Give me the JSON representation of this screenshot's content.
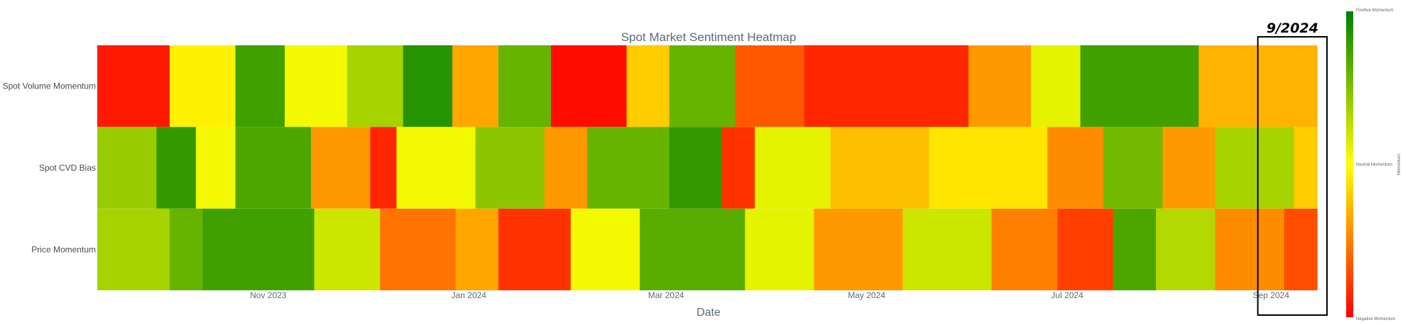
{
  "chart_data": {
    "type": "heatmap",
    "title": "Spot Market Sentiment Heatmap",
    "xlabel": "Date",
    "ylabel": "",
    "x_range": [
      "2023-09-10",
      "2024-09-15"
    ],
    "x_ticks": [
      {
        "date": "2023-11-01",
        "label": "Nov 2023"
      },
      {
        "date": "2024-01-01",
        "label": "Jan 2024"
      },
      {
        "date": "2024-03-01",
        "label": "Mar 2024"
      },
      {
        "date": "2024-05-01",
        "label": "May 2024"
      },
      {
        "date": "2024-07-01",
        "label": "Jul 2024"
      },
      {
        "date": "2024-09-01",
        "label": "Sep 2024"
      }
    ],
    "rows": [
      "Spot Volume Momentum",
      "Spot CVD Bias",
      "Price Momentum"
    ],
    "value_range": [
      -1,
      1
    ],
    "colorscale": [
      [
        0,
        "#ff0000"
      ],
      [
        0.5,
        "#ffff00"
      ],
      [
        1,
        "#008000"
      ]
    ],
    "colorbar": {
      "title": "Momentum",
      "top_label": "Positive Momentum",
      "mid_label": "Neutral Momentum",
      "bottom_label": "Negative Momentum"
    },
    "series_segments": [
      {
        "name": "Spot Volume Momentum",
        "segments": [
          {
            "start": "2023-09-10",
            "end": "2023-10-02",
            "value": -0.9
          },
          {
            "start": "2023-10-02",
            "end": "2023-10-22",
            "value": -0.05
          },
          {
            "start": "2023-10-22",
            "end": "2023-11-06",
            "value": 0.75
          },
          {
            "start": "2023-11-06",
            "end": "2023-11-25",
            "value": 0.05
          },
          {
            "start": "2023-11-25",
            "end": "2023-12-12",
            "value": 0.35
          },
          {
            "start": "2023-12-12",
            "end": "2023-12-27",
            "value": 0.85
          },
          {
            "start": "2023-12-27",
            "end": "2024-01-10",
            "value": -0.35
          },
          {
            "start": "2024-01-10",
            "end": "2024-01-26",
            "value": 0.6
          },
          {
            "start": "2024-01-26",
            "end": "2024-02-18",
            "value": -0.95
          },
          {
            "start": "2024-02-18",
            "end": "2024-03-02",
            "value": -0.2
          },
          {
            "start": "2024-03-02",
            "end": "2024-03-22",
            "value": 0.6
          },
          {
            "start": "2024-03-22",
            "end": "2024-04-12",
            "value": -0.65
          },
          {
            "start": "2024-04-12",
            "end": "2024-06-01",
            "value": -0.85
          },
          {
            "start": "2024-06-01",
            "end": "2024-06-20",
            "value": -0.4
          },
          {
            "start": "2024-06-20",
            "end": "2024-07-05",
            "value": 0.1
          },
          {
            "start": "2024-07-05",
            "end": "2024-08-10",
            "value": 0.75
          },
          {
            "start": "2024-08-10",
            "end": "2024-09-15",
            "value": -0.3
          }
        ]
      },
      {
        "name": "Spot CVD Bias",
        "segments": [
          {
            "start": "2023-09-10",
            "end": "2023-09-28",
            "value": 0.4
          },
          {
            "start": "2023-09-28",
            "end": "2023-10-10",
            "value": 0.8
          },
          {
            "start": "2023-10-10",
            "end": "2023-10-22",
            "value": 0.05
          },
          {
            "start": "2023-10-22",
            "end": "2023-11-14",
            "value": 0.7
          },
          {
            "start": "2023-11-14",
            "end": "2023-12-02",
            "value": -0.4
          },
          {
            "start": "2023-12-02",
            "end": "2023-12-10",
            "value": -0.85
          },
          {
            "start": "2023-12-10",
            "end": "2024-01-03",
            "value": 0.05
          },
          {
            "start": "2024-01-03",
            "end": "2024-01-24",
            "value": 0.45
          },
          {
            "start": "2024-01-24",
            "end": "2024-02-06",
            "value": -0.4
          },
          {
            "start": "2024-02-06",
            "end": "2024-03-02",
            "value": 0.6
          },
          {
            "start": "2024-03-02",
            "end": "2024-03-18",
            "value": 0.8
          },
          {
            "start": "2024-03-18",
            "end": "2024-03-28",
            "value": -0.8
          },
          {
            "start": "2024-03-28",
            "end": "2024-04-20",
            "value": 0.1
          },
          {
            "start": "2024-04-20",
            "end": "2024-05-20",
            "value": -0.25
          },
          {
            "start": "2024-05-20",
            "end": "2024-06-25",
            "value": -0.1
          },
          {
            "start": "2024-06-25",
            "end": "2024-07-12",
            "value": -0.45
          },
          {
            "start": "2024-07-12",
            "end": "2024-07-30",
            "value": 0.55
          },
          {
            "start": "2024-07-30",
            "end": "2024-08-15",
            "value": -0.4
          },
          {
            "start": "2024-08-15",
            "end": "2024-09-08",
            "value": 0.35
          },
          {
            "start": "2024-09-08",
            "end": "2024-09-15",
            "value": -0.2
          }
        ]
      },
      {
        "name": "Price Momentum",
        "segments": [
          {
            "start": "2023-09-10",
            "end": "2023-10-02",
            "value": 0.35
          },
          {
            "start": "2023-10-02",
            "end": "2023-10-12",
            "value": 0.6
          },
          {
            "start": "2023-10-12",
            "end": "2023-11-15",
            "value": 0.75
          },
          {
            "start": "2023-11-15",
            "end": "2023-12-05",
            "value": 0.2
          },
          {
            "start": "2023-12-05",
            "end": "2023-12-28",
            "value": -0.55
          },
          {
            "start": "2023-12-28",
            "end": "2024-01-10",
            "value": -0.35
          },
          {
            "start": "2024-01-10",
            "end": "2024-02-01",
            "value": -0.8
          },
          {
            "start": "2024-02-01",
            "end": "2024-02-22",
            "value": 0.05
          },
          {
            "start": "2024-02-22",
            "end": "2024-03-25",
            "value": 0.65
          },
          {
            "start": "2024-03-25",
            "end": "2024-04-15",
            "value": 0.1
          },
          {
            "start": "2024-04-15",
            "end": "2024-05-12",
            "value": -0.4
          },
          {
            "start": "2024-05-12",
            "end": "2024-06-08",
            "value": 0.2
          },
          {
            "start": "2024-06-08",
            "end": "2024-06-28",
            "value": -0.5
          },
          {
            "start": "2024-06-28",
            "end": "2024-07-15",
            "value": -0.75
          },
          {
            "start": "2024-07-15",
            "end": "2024-07-28",
            "value": 0.7
          },
          {
            "start": "2024-07-28",
            "end": "2024-08-15",
            "value": 0.3
          },
          {
            "start": "2024-08-15",
            "end": "2024-09-05",
            "value": -0.45
          },
          {
            "start": "2024-09-05",
            "end": "2024-09-15",
            "value": -0.7
          }
        ]
      }
    ],
    "annotation": {
      "text": "9/2024",
      "box_start": "2024-08-28",
      "box_end": "2024-09-15"
    }
  }
}
